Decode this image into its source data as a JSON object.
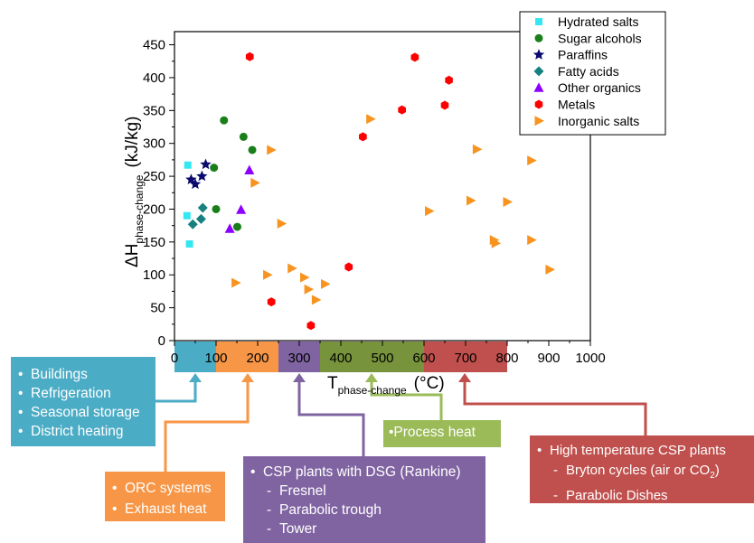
{
  "chart_data": {
    "type": "scatter",
    "xlabel_main": "T",
    "xlabel_sub": "phase-change",
    "xlabel_unit": "(°C)",
    "ylabel_main": "ΔH",
    "ylabel_sub": "phase-change",
    "ylabel_unit": "(kJ/kg)",
    "xlim": [
      0,
      1000
    ],
    "ylim": [
      0,
      470
    ],
    "xticks": [
      0,
      100,
      200,
      300,
      400,
      500,
      600,
      700,
      800,
      900,
      1000
    ],
    "yticks": [
      0,
      50,
      100,
      150,
      200,
      250,
      300,
      350,
      400,
      450
    ],
    "legend_position": "top-right",
    "series": [
      {
        "name": "Hydrated salts",
        "marker": "square",
        "color": "#33e8f0",
        "points": [
          [
            32,
            267
          ],
          [
            30,
            190
          ],
          [
            36,
            147
          ]
        ]
      },
      {
        "name": "Sugar alcohols",
        "marker": "circle",
        "color": "#1a7f1a",
        "points": [
          [
            119,
            335
          ],
          [
            166,
            310
          ],
          [
            187,
            290
          ],
          [
            95,
            263
          ],
          [
            100,
            200
          ],
          [
            151,
            173
          ]
        ]
      },
      {
        "name": "Paraffins",
        "marker": "star",
        "color": "#0a0a6e",
        "points": [
          [
            75,
            268
          ],
          [
            66,
            250
          ],
          [
            40,
            245
          ],
          [
            50,
            238
          ]
        ]
      },
      {
        "name": "Fatty acids",
        "marker": "diamond",
        "color": "#178080",
        "points": [
          [
            68,
            202
          ],
          [
            64,
            185
          ],
          [
            44,
            177
          ]
        ]
      },
      {
        "name": "Other organics",
        "marker": "triangle-up",
        "color": "#8b00ff",
        "points": [
          [
            180,
            259
          ],
          [
            160,
            199
          ],
          [
            133,
            170
          ]
        ]
      },
      {
        "name": "Metals",
        "marker": "hexagon",
        "color": "#ff0000",
        "points": [
          [
            181,
            432
          ],
          [
            578,
            431
          ],
          [
            660,
            396
          ],
          [
            650,
            358
          ],
          [
            547,
            351
          ],
          [
            453,
            310
          ],
          [
            419,
            112
          ],
          [
            233,
            59
          ],
          [
            328,
            23
          ]
        ]
      },
      {
        "name": "Inorganic salts",
        "marker": "triangle-right",
        "color": "#f7931e",
        "points": [
          [
            232,
            290
          ],
          [
            193,
            240
          ],
          [
            257,
            178
          ],
          [
            223,
            100
          ],
          [
            147,
            88
          ],
          [
            282,
            110
          ],
          [
            312,
            96
          ],
          [
            322,
            78
          ],
          [
            340,
            62
          ],
          [
            362,
            86
          ],
          [
            471,
            337
          ],
          [
            612,
            197
          ],
          [
            727,
            291
          ],
          [
            712,
            213
          ],
          [
            800,
            211
          ],
          [
            858,
            274
          ],
          [
            768,
            153
          ],
          [
            772,
            148
          ],
          [
            858,
            153
          ],
          [
            902,
            108
          ]
        ]
      }
    ],
    "temperature_bands": [
      {
        "range": [
          0,
          100
        ],
        "color": "#4bacc6"
      },
      {
        "range": [
          100,
          250
        ],
        "color": "#f79646"
      },
      {
        "range": [
          250,
          350
        ],
        "color": "#8064a2"
      },
      {
        "range": [
          350,
          600
        ],
        "color": "#77933c"
      },
      {
        "range": [
          600,
          800
        ],
        "color": "#c0504d"
      }
    ]
  },
  "callouts": {
    "low_temp": {
      "color": "#4bacc6",
      "items": [
        "Buildings",
        "Refrigeration",
        "Seasonal storage",
        "District heating"
      ]
    },
    "medium_low": {
      "color": "#f79646",
      "items": [
        "ORC systems",
        "Exhaust heat"
      ]
    },
    "csp_dsg": {
      "color": "#8064a2",
      "title": "CSP plants with DSG (Rankine)",
      "items": [
        "Fresnel",
        "Parabolic trough",
        "Tower"
      ]
    },
    "process": {
      "color": "#9bbb59",
      "text": "•Process heat"
    },
    "high_temp": {
      "color": "#c0504d",
      "title": "High temperature CSP plants",
      "item1_main": "Bryton cycles (air or CO",
      "item1_sub": "2",
      "item1_end": ")",
      "item2": "Parabolic Dishes"
    }
  }
}
